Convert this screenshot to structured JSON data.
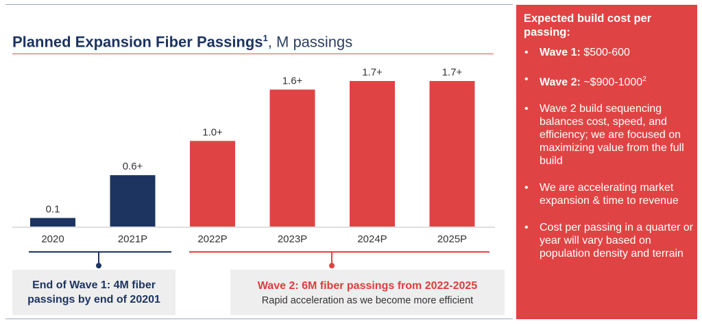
{
  "title": {
    "main": "Planned Expansion Fiber Passings",
    "sup": "1",
    "suffix": ", M passings"
  },
  "chart_data": {
    "type": "bar",
    "title": "Planned Expansion Fiber Passings, M passings",
    "categories": [
      "2020",
      "2021P",
      "2022P",
      "2023P",
      "2024P",
      "2025P"
    ],
    "values": [
      0.1,
      0.6,
      1.0,
      1.6,
      1.7,
      1.7
    ],
    "data_labels": [
      "0.1",
      "0.6+",
      "1.0+",
      "1.6+",
      "1.7+",
      "1.7+"
    ],
    "colors": [
      "#1d3461",
      "#1d3461",
      "#e04343",
      "#e04343",
      "#e04343",
      "#e04343"
    ],
    "ylim": [
      0,
      1.7
    ],
    "grid": false,
    "legend": "none"
  },
  "wave1": {
    "line1": "End of Wave 1: 4M fiber",
    "line2": "passings by end of 20201"
  },
  "wave2": {
    "title": "Wave 2: 6M fiber passings from 2022-2025",
    "subtitle": "Rapid acceleration as we become more efficient"
  },
  "panel": {
    "heading": "Expected build cost per passing:",
    "bullet_glyph": "•",
    "items": [
      {
        "bold": "Wave 1: ",
        "text": "$500-600",
        "sup": ""
      },
      {
        "bold": "Wave 2: ",
        "text": " ~$900-1000",
        "sup": "2"
      },
      {
        "bold": "",
        "text": "Wave 2 build sequencing balances cost, speed, and efficiency; we are focused on maximizing value from the full build",
        "sup": ""
      },
      {
        "bold": "",
        "text": "We are accelerating market expansion & time to revenue",
        "sup": ""
      },
      {
        "bold": "",
        "text": "Cost per passing in a quarter or year will vary based on population density and terrain",
        "sup": ""
      }
    ]
  },
  "colors": {
    "navy": "#1d3461",
    "red": "#e04343",
    "grey_box": "#eeeeee"
  }
}
